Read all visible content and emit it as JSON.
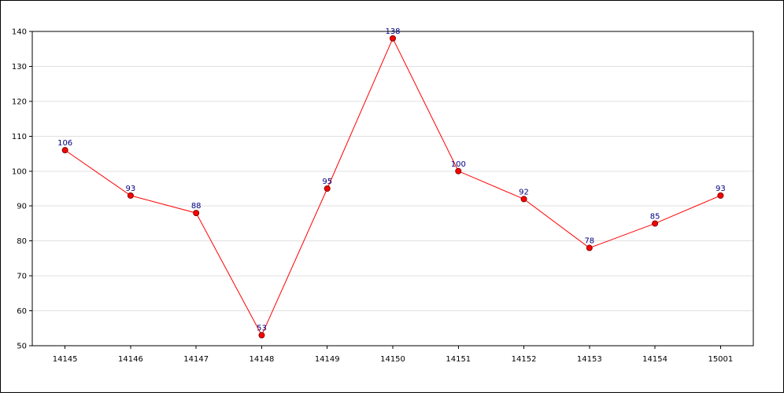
{
  "chart_data": {
    "type": "line",
    "categories": [
      "14145",
      "14146",
      "14147",
      "14148",
      "14149",
      "14150",
      "14151",
      "14152",
      "14153",
      "14154",
      "15001"
    ],
    "series": [
      {
        "values": [
          106,
          93,
          88,
          53,
          95,
          138,
          100,
          92,
          78,
          85,
          93
        ]
      }
    ],
    "y_ticks": [
      "50",
      "60",
      "70",
      "80",
      "90",
      "100",
      "110",
      "120",
      "130",
      "140"
    ],
    "ylim": [
      50,
      140
    ],
    "grid": "horizontal",
    "legend": "none",
    "data_labels": true,
    "colors": {
      "line": "#ff0000",
      "marker_fill": "#ff0000",
      "marker_stroke": "#800000",
      "data_label": "#000080",
      "grid": "#e0e0e0",
      "axis": "#000000"
    }
  }
}
